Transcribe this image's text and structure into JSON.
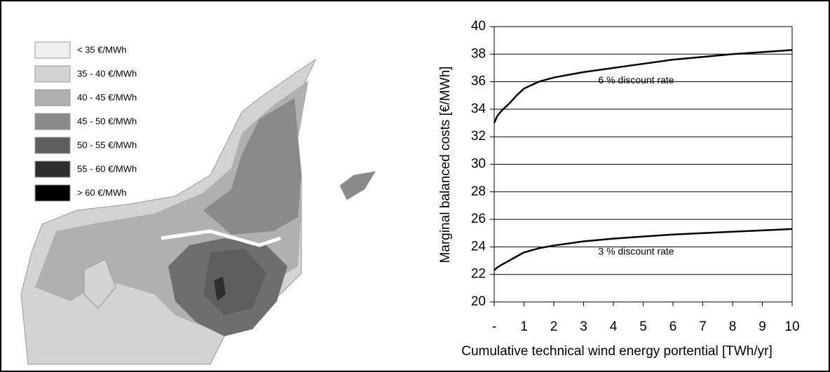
{
  "map": {
    "legend": [
      {
        "label": "< 35 €/MWh",
        "color": "#efefef"
      },
      {
        "label": "35 - 40 €/MWh",
        "color": "#d3d3d3"
      },
      {
        "label": "40 - 45 €/MWh",
        "color": "#b0b0b0"
      },
      {
        "label": "45 - 50 €/MWh",
        "color": "#8a8a8a"
      },
      {
        "label": "50 - 55 €/MWh",
        "color": "#5e5e5e"
      },
      {
        "label": "55 - 60 €/MWh",
        "color": "#2e2e2e"
      },
      {
        "label": "> 60 €/MWh",
        "color": "#000000"
      }
    ]
  },
  "chart_data": {
    "type": "line",
    "x_label": "Cumulative technical wind energy portential [TWh/yr]",
    "y_label": "Marginal balanced costs [€/MWh]",
    "x": [
      0,
      0.1,
      0.25,
      0.5,
      0.75,
      1,
      1.5,
      2,
      3,
      4,
      5,
      6,
      7,
      8,
      9,
      10
    ],
    "series": [
      {
        "name": "6 % discount rate",
        "color": "#000000",
        "values": [
          33,
          33.5,
          33.9,
          34.4,
          35.0,
          35.5,
          36.0,
          36.3,
          36.7,
          37.0,
          37.3,
          37.6,
          37.8,
          38.0,
          38.15,
          38.3
        ]
      },
      {
        "name": "3 % discount rate",
        "color": "#000000",
        "values": [
          22.3,
          22.5,
          22.7,
          23.0,
          23.3,
          23.6,
          23.9,
          24.1,
          24.4,
          24.6,
          24.75,
          24.9,
          25.0,
          25.1,
          25.2,
          25.3
        ]
      }
    ],
    "xlim": [
      0,
      10
    ],
    "xticks": [
      {
        "value": 0,
        "label": "-"
      },
      1,
      2,
      3,
      4,
      5,
      6,
      7,
      8,
      9,
      10
    ],
    "ylim": [
      20,
      40
    ],
    "yticks": [
      20,
      22,
      24,
      26,
      28,
      30,
      32,
      34,
      36,
      38,
      40
    ],
    "grid": true
  }
}
